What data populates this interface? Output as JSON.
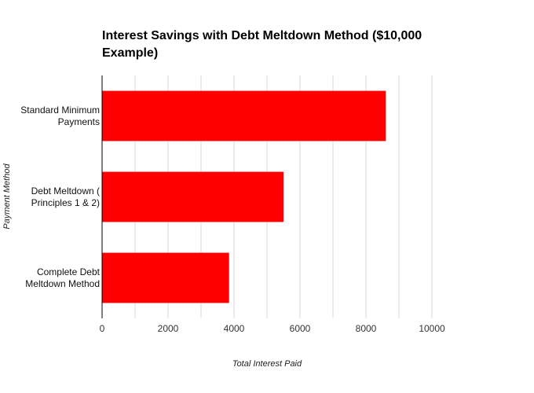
{
  "chart_data": {
    "type": "bar",
    "orientation": "horizontal",
    "title": "Interest Savings with Debt Meltdown Method ($10,000 Example)",
    "xlabel": "Total Interest Paid",
    "ylabel": "Payment Method",
    "categories": [
      [
        "Standard Minimum",
        "Payments"
      ],
      [
        "Debt Meltdown (",
        "Principles 1 & 2)"
      ],
      [
        "Complete Debt",
        "Meltdown Method"
      ]
    ],
    "values": [
      8600,
      5500,
      3850
    ],
    "xlim": [
      0,
      10000
    ],
    "xticks": [
      "0",
      "2000",
      "4000",
      "6000",
      "8000",
      "10000"
    ],
    "tick_values": [
      0,
      2000,
      4000,
      6000,
      8000,
      10000
    ],
    "grid": true,
    "bar_color": "#ff0000",
    "grid_color": "#d9d9d9"
  }
}
